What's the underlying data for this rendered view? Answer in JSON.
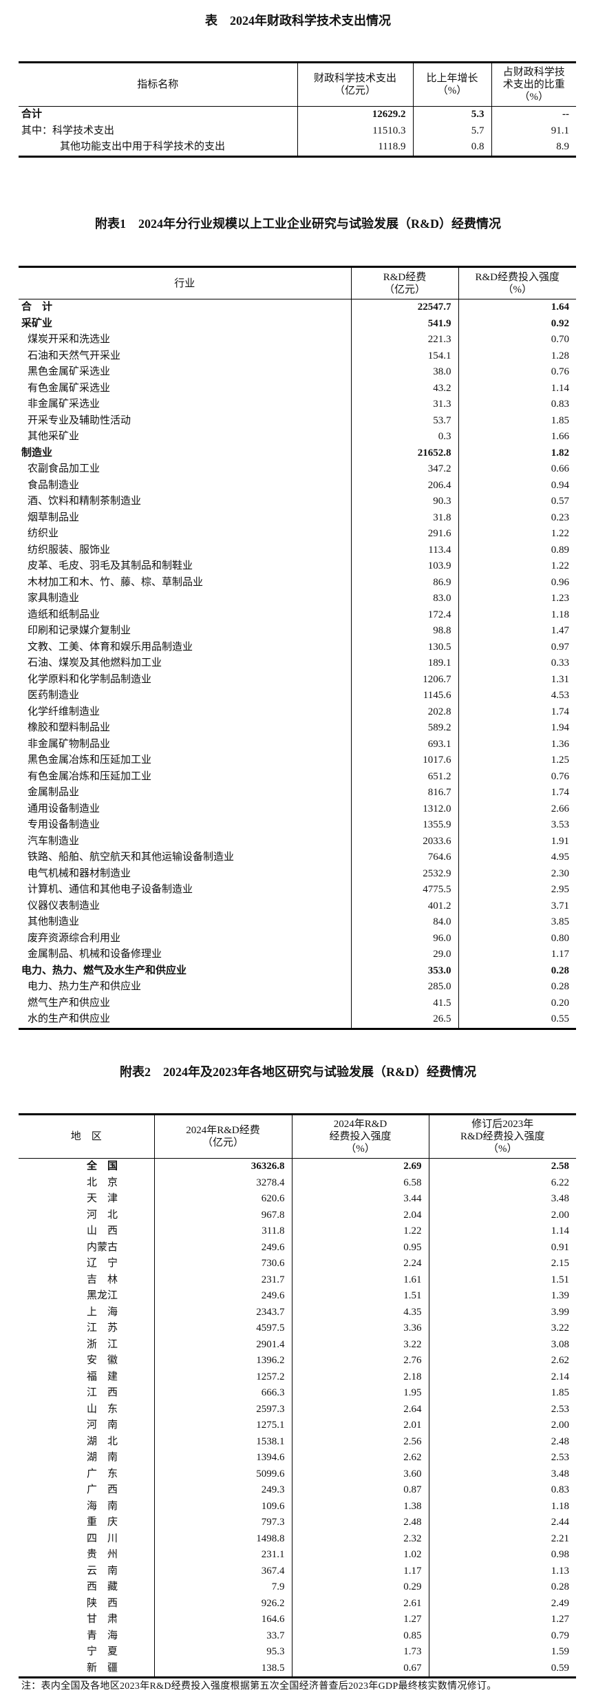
{
  "table0": {
    "title": "表　2024年财政科学技术支出情况",
    "headers": [
      "指标名称",
      "财政科学技术支出\n（亿元）",
      "比上年增长\n（%）",
      "占财政科学技\n术支出的比重\n（%）"
    ],
    "rows": [
      {
        "name": "合计",
        "v1": "12629.2",
        "v2": "5.3",
        "v3": "--",
        "bold": true,
        "indent": 0
      },
      {
        "name": "其中：科学技术支出",
        "v1": "11510.3",
        "v2": "5.7",
        "v3": "91.1",
        "bold": false,
        "indent": 0
      },
      {
        "name": "其他功能支出中用于科学技术的支出",
        "v1": "1118.9",
        "v2": "0.8",
        "v3": "8.9",
        "bold": false,
        "indent": 2
      }
    ]
  },
  "table1": {
    "title": "附表1　2024年分行业规模以上工业企业研究与试验发展（R&D）经费情况",
    "headers": [
      "行业",
      "R&D经费\n（亿元）",
      "R&D经费投入强度\n（%）"
    ],
    "rows": [
      {
        "name": "合　计",
        "v1": "22547.7",
        "v2": "1.64",
        "bold": true
      },
      {
        "name": "采矿业",
        "v1": "541.9",
        "v2": "0.92",
        "bold": true
      },
      {
        "name": "煤炭开采和洗选业",
        "v1": "221.3",
        "v2": "0.70"
      },
      {
        "name": "石油和天然气开采业",
        "v1": "154.1",
        "v2": "1.28"
      },
      {
        "name": "黑色金属矿采选业",
        "v1": "38.0",
        "v2": "0.76"
      },
      {
        "name": "有色金属矿采选业",
        "v1": "43.2",
        "v2": "1.14"
      },
      {
        "name": "非金属矿采选业",
        "v1": "31.3",
        "v2": "0.83"
      },
      {
        "name": "开采专业及辅助性活动",
        "v1": "53.7",
        "v2": "1.85"
      },
      {
        "name": "其他采矿业",
        "v1": "0.3",
        "v2": "1.66"
      },
      {
        "name": "制造业",
        "v1": "21652.8",
        "v2": "1.82",
        "bold": true
      },
      {
        "name": "农副食品加工业",
        "v1": "347.2",
        "v2": "0.66"
      },
      {
        "name": "食品制造业",
        "v1": "206.4",
        "v2": "0.94"
      },
      {
        "name": "酒、饮料和精制茶制造业",
        "v1": "90.3",
        "v2": "0.57"
      },
      {
        "name": "烟草制品业",
        "v1": "31.8",
        "v2": "0.23"
      },
      {
        "name": "纺织业",
        "v1": "291.6",
        "v2": "1.22"
      },
      {
        "name": "纺织服装、服饰业",
        "v1": "113.4",
        "v2": "0.89"
      },
      {
        "name": "皮革、毛皮、羽毛及其制品和制鞋业",
        "v1": "103.9",
        "v2": "1.22"
      },
      {
        "name": "木材加工和木、竹、藤、棕、草制品业",
        "v1": "86.9",
        "v2": "0.96"
      },
      {
        "name": "家具制造业",
        "v1": "83.0",
        "v2": "1.23"
      },
      {
        "name": "造纸和纸制品业",
        "v1": "172.4",
        "v2": "1.18"
      },
      {
        "name": "印刷和记录媒介复制业",
        "v1": "98.8",
        "v2": "1.47"
      },
      {
        "name": "文教、工美、体育和娱乐用品制造业",
        "v1": "130.5",
        "v2": "0.97"
      },
      {
        "name": "石油、煤炭及其他燃料加工业",
        "v1": "189.1",
        "v2": "0.33"
      },
      {
        "name": "化学原料和化学制品制造业",
        "v1": "1206.7",
        "v2": "1.31"
      },
      {
        "name": "医药制造业",
        "v1": "1145.6",
        "v2": "4.53"
      },
      {
        "name": "化学纤维制造业",
        "v1": "202.8",
        "v2": "1.74"
      },
      {
        "name": "橡胶和塑料制品业",
        "v1": "589.2",
        "v2": "1.94"
      },
      {
        "name": "非金属矿物制品业",
        "v1": "693.1",
        "v2": "1.36"
      },
      {
        "name": "黑色金属冶炼和压延加工业",
        "v1": "1017.6",
        "v2": "1.25"
      },
      {
        "name": "有色金属冶炼和压延加工业",
        "v1": "651.2",
        "v2": "0.76"
      },
      {
        "name": "金属制品业",
        "v1": "816.7",
        "v2": "1.74"
      },
      {
        "name": "通用设备制造业",
        "v1": "1312.0",
        "v2": "2.66"
      },
      {
        "name": "专用设备制造业",
        "v1": "1355.9",
        "v2": "3.53"
      },
      {
        "name": "汽车制造业",
        "v1": "2033.6",
        "v2": "1.91"
      },
      {
        "name": "铁路、船舶、航空航天和其他运输设备制造业",
        "v1": "764.6",
        "v2": "4.95"
      },
      {
        "name": "电气机械和器材制造业",
        "v1": "2532.9",
        "v2": "2.30"
      },
      {
        "name": "计算机、通信和其他电子设备制造业",
        "v1": "4775.5",
        "v2": "2.95"
      },
      {
        "name": "仪器仪表制造业",
        "v1": "401.2",
        "v2": "3.71"
      },
      {
        "name": "其他制造业",
        "v1": "84.0",
        "v2": "3.85"
      },
      {
        "name": "废弃资源综合利用业",
        "v1": "96.0",
        "v2": "0.80"
      },
      {
        "name": "金属制品、机械和设备修理业",
        "v1": "29.0",
        "v2": "1.17"
      },
      {
        "name": "电力、热力、燃气及水生产和供应业",
        "v1": "353.0",
        "v2": "0.28",
        "bold": true
      },
      {
        "name": "电力、热力生产和供应业",
        "v1": "285.0",
        "v2": "0.28"
      },
      {
        "name": "燃气生产和供应业",
        "v1": "41.5",
        "v2": "0.20"
      },
      {
        "name": "水的生产和供应业",
        "v1": "26.5",
        "v2": "0.55"
      }
    ]
  },
  "table2": {
    "title": "附表2　2024年及2023年各地区研究与试验发展（R&D）经费情况",
    "headers": [
      "地　区",
      "2024年R&D经费\n（亿元）",
      "2024年R&D\n经费投入强度\n（%）",
      "修订后2023年\nR&D经费投入强度\n（%）"
    ],
    "rows": [
      {
        "name": "全　国",
        "v1": "36326.8",
        "v2": "2.69",
        "v3": "2.58",
        "bold": true
      },
      {
        "name": "北　京",
        "v1": "3278.4",
        "v2": "6.58",
        "v3": "6.22"
      },
      {
        "name": "天　津",
        "v1": "620.6",
        "v2": "3.44",
        "v3": "3.48"
      },
      {
        "name": "河　北",
        "v1": "967.8",
        "v2": "2.04",
        "v3": "2.00"
      },
      {
        "name": "山　西",
        "v1": "311.8",
        "v2": "1.22",
        "v3": "1.14"
      },
      {
        "name": "内蒙古",
        "v1": "249.6",
        "v2": "0.95",
        "v3": "0.91"
      },
      {
        "name": "辽　宁",
        "v1": "730.6",
        "v2": "2.24",
        "v3": "2.15"
      },
      {
        "name": "吉　林",
        "v1": "231.7",
        "v2": "1.61",
        "v3": "1.51"
      },
      {
        "name": "黑龙江",
        "v1": "249.6",
        "v2": "1.51",
        "v3": "1.39"
      },
      {
        "name": "上　海",
        "v1": "2343.7",
        "v2": "4.35",
        "v3": "3.99"
      },
      {
        "name": "江　苏",
        "v1": "4597.5",
        "v2": "3.36",
        "v3": "3.22"
      },
      {
        "name": "浙　江",
        "v1": "2901.4",
        "v2": "3.22",
        "v3": "3.08"
      },
      {
        "name": "安　徽",
        "v1": "1396.2",
        "v2": "2.76",
        "v3": "2.62"
      },
      {
        "name": "福　建",
        "v1": "1257.2",
        "v2": "2.18",
        "v3": "2.14"
      },
      {
        "name": "江　西",
        "v1": "666.3",
        "v2": "1.95",
        "v3": "1.85"
      },
      {
        "name": "山　东",
        "v1": "2597.3",
        "v2": "2.64",
        "v3": "2.53"
      },
      {
        "name": "河　南",
        "v1": "1275.1",
        "v2": "2.01",
        "v3": "2.00"
      },
      {
        "name": "湖　北",
        "v1": "1538.1",
        "v2": "2.56",
        "v3": "2.48"
      },
      {
        "name": "湖　南",
        "v1": "1394.6",
        "v2": "2.62",
        "v3": "2.53"
      },
      {
        "name": "广　东",
        "v1": "5099.6",
        "v2": "3.60",
        "v3": "3.48"
      },
      {
        "name": "广　西",
        "v1": "249.3",
        "v2": "0.87",
        "v3": "0.83"
      },
      {
        "name": "海　南",
        "v1": "109.6",
        "v2": "1.38",
        "v3": "1.18"
      },
      {
        "name": "重　庆",
        "v1": "797.3",
        "v2": "2.48",
        "v3": "2.44"
      },
      {
        "name": "四　川",
        "v1": "1498.8",
        "v2": "2.32",
        "v3": "2.21"
      },
      {
        "name": "贵　州",
        "v1": "231.1",
        "v2": "1.02",
        "v3": "0.98"
      },
      {
        "name": "云　南",
        "v1": "367.4",
        "v2": "1.17",
        "v3": "1.13"
      },
      {
        "name": "西　藏",
        "v1": "7.9",
        "v2": "0.29",
        "v3": "0.28"
      },
      {
        "name": "陕　西",
        "v1": "926.2",
        "v2": "2.61",
        "v3": "2.49"
      },
      {
        "name": "甘　肃",
        "v1": "164.6",
        "v2": "1.27",
        "v3": "1.27"
      },
      {
        "name": "青　海",
        "v1": "33.7",
        "v2": "0.85",
        "v3": "0.79"
      },
      {
        "name": "宁　夏",
        "v1": "95.3",
        "v2": "1.73",
        "v3": "1.59"
      },
      {
        "name": "新　疆",
        "v1": "138.5",
        "v2": "0.67",
        "v3": "0.59"
      }
    ],
    "note": "注：表内全国及各地区2023年R&D经费投入强度根据第五次全国经济普查后2023年GDP最终核实数情况修订。"
  }
}
